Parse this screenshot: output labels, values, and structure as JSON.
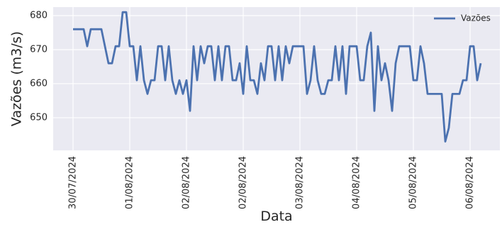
{
  "chart_data": {
    "type": "line",
    "x_label": "Data",
    "y_label": "Vazões (m3/s)",
    "series": [
      {
        "name": "Vazões",
        "color": "#4c72b0",
        "values": [
          676,
          676,
          676,
          676,
          671,
          676,
          676,
          676,
          676,
          671,
          666,
          666,
          671,
          671,
          681,
          681,
          671,
          671,
          661,
          671,
          661,
          657,
          661,
          661,
          671,
          671,
          661,
          671,
          661,
          657,
          661,
          657,
          661,
          652,
          671,
          661,
          671,
          666,
          671,
          671,
          661,
          671,
          661,
          671,
          671,
          661,
          661,
          666,
          657,
          671,
          661,
          661,
          657,
          666,
          661,
          671,
          671,
          661,
          671,
          661,
          671,
          666,
          671,
          671,
          671,
          671,
          657,
          661,
          671,
          661,
          657,
          657,
          661,
          661,
          671,
          661,
          671,
          657,
          671,
          671,
          671,
          661,
          661,
          671,
          675,
          652,
          671,
          661,
          666,
          661,
          652,
          666,
          671,
          671,
          671,
          671,
          661,
          661,
          671,
          666,
          657,
          657,
          657,
          657,
          657,
          643,
          647,
          657,
          657,
          657,
          661,
          661,
          671,
          671,
          661,
          666
        ]
      }
    ],
    "xlim": [
      -5.6,
      120.4
    ],
    "xticks": [
      {
        "value": 0,
        "label": "30/07/2024"
      },
      {
        "value": 16,
        "label": "01/08/2024"
      },
      {
        "value": 32,
        "label": "02/08/2024"
      },
      {
        "value": 48,
        "label": "02/08/2024"
      },
      {
        "value": 64,
        "label": "03/08/2024"
      },
      {
        "value": 80,
        "label": "04/08/2024"
      },
      {
        "value": 96,
        "label": "05/08/2024"
      },
      {
        "value": 112,
        "label": "06/08/2024"
      }
    ],
    "ylim": [
      640.4,
      682.5
    ],
    "yticks": [
      650,
      660,
      670,
      680
    ],
    "grid": true,
    "legend": "upper right"
  }
}
